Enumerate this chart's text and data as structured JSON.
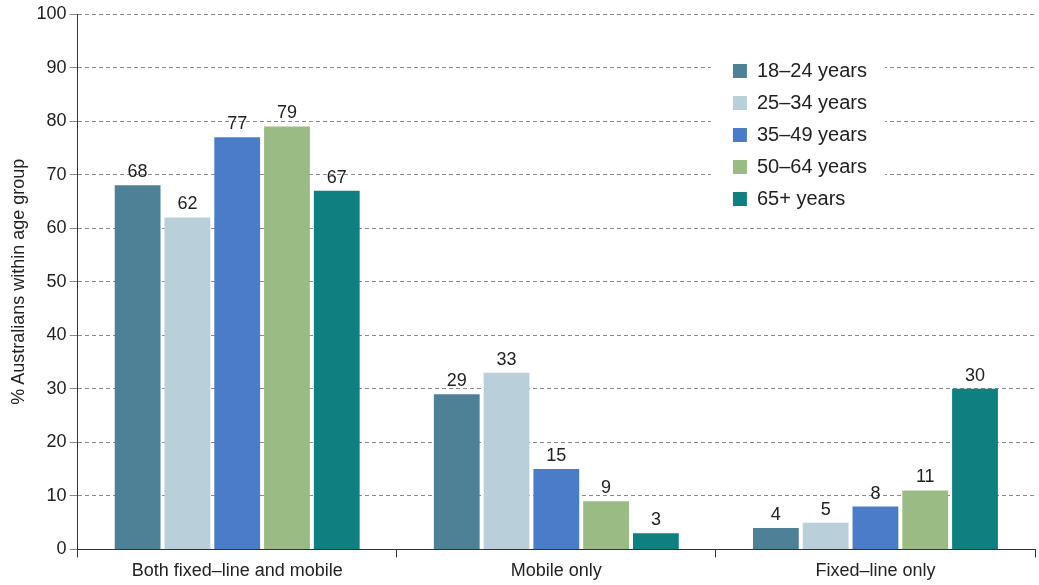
{
  "chart_data": {
    "type": "bar",
    "ylabel": "% Australians within age group",
    "categories": [
      "Both fixed–line and mobile",
      "Mobile only",
      "Fixed–line only"
    ],
    "series": [
      {
        "name": "18–24 years",
        "color": "#4f8196",
        "values": [
          68,
          29,
          4
        ]
      },
      {
        "name": "25–34 years",
        "color": "#b9cfd9",
        "values": [
          62,
          33,
          5
        ]
      },
      {
        "name": "35–49 years",
        "color": "#4a7cc9",
        "values": [
          77,
          15,
          8
        ]
      },
      {
        "name": "50–64 years",
        "color": "#9bbb84",
        "values": [
          79,
          9,
          11
        ]
      },
      {
        "name": "65+ years",
        "color": "#0f7f7f",
        "values": [
          67,
          3,
          30
        ]
      }
    ],
    "ylim": [
      0,
      100
    ],
    "yticks": [
      0,
      10,
      20,
      30,
      40,
      50,
      60,
      70,
      80,
      90,
      100
    ],
    "grid": "y",
    "legend": "top right",
    "data_labels": true
  }
}
